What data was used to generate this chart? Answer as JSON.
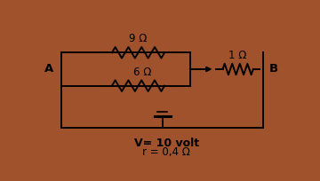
{
  "bg_color": "#ffffff",
  "border_color": "#a0522d",
  "line_color": "black",
  "text_color": "black",
  "label_A": "A",
  "label_B": "B",
  "label_9ohm": "9 Ω",
  "label_6ohm": "6 Ω",
  "label_1ohm": "1 Ω",
  "label_voltage": "V= 10 volt",
  "label_resistance": "r = 0,4 Ω",
  "font_size": 8.5,
  "label_font_size": 9.5
}
